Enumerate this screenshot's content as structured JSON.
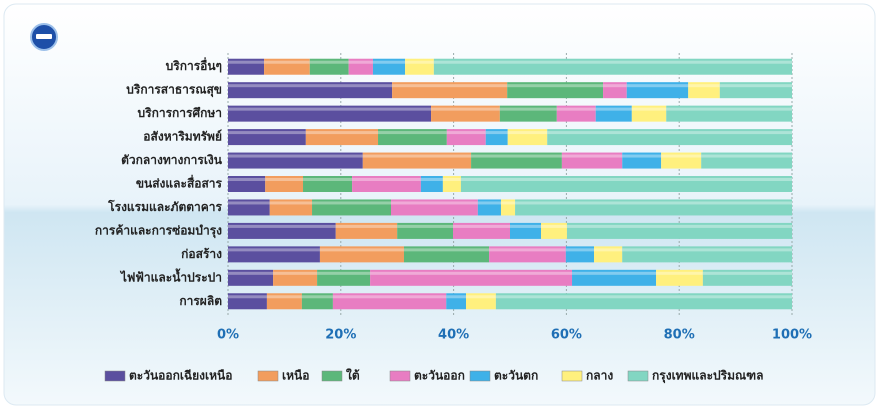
{
  "chart_data": {
    "type": "stacked-bar-horizontal-percent",
    "categories": [
      "บริการอื่นๆ",
      "บริการสาธารณสุข",
      "บริการการศึกษา",
      "อสังหาริมทรัพย์",
      "ตัวกลางทางการเงิน",
      "ขนส่งและสื่อสาร",
      "โรงแรมและภัตตาคาร",
      "การค้าและการซ่อมบำรุง",
      "ก่อสร้าง",
      "ไฟฟ้าและน้ำประปา",
      "การผลิต"
    ],
    "series": [
      {
        "name": "ตะวันออกเฉียงเหนือ",
        "color": "#5b4f9f",
        "values": [
          6.4,
          29.1,
          36.0,
          13.8,
          23.9,
          6.6,
          7.4,
          19.1,
          16.3,
          8.0,
          6.9
        ]
      },
      {
        "name": "เหนือ",
        "color": "#f29d5e",
        "values": [
          8.1,
          20.4,
          12.2,
          12.8,
          19.2,
          6.7,
          7.5,
          10.9,
          14.9,
          7.8,
          6.2
        ]
      },
      {
        "name": "ใต้",
        "color": "#5cb77a",
        "values": [
          6.9,
          17.0,
          10.1,
          12.2,
          16.1,
          8.7,
          14.0,
          9.9,
          15.1,
          9.4,
          5.5
        ]
      },
      {
        "name": "ตะวันออก",
        "color": "#e87dc2",
        "values": [
          4.3,
          4.2,
          6.9,
          6.9,
          10.7,
          12.2,
          15.4,
          10.1,
          13.6,
          35.8,
          20.1
        ]
      },
      {
        "name": "ตะวันตก",
        "color": "#3fb1e8",
        "values": [
          5.7,
          10.9,
          6.4,
          3.9,
          6.9,
          3.9,
          4.1,
          5.5,
          5.0,
          14.9,
          3.5
        ]
      },
      {
        "name": "กลาง",
        "color": "#fff07e",
        "values": [
          5.1,
          5.6,
          6.1,
          7.0,
          7.1,
          3.2,
          2.5,
          4.6,
          5.0,
          8.3,
          5.3
        ]
      },
      {
        "name": "กรุงเทพและปริมณฑล",
        "color": "#82d6c2",
        "values": [
          63.5,
          12.8,
          22.3,
          43.4,
          16.1,
          58.7,
          49.1,
          39.9,
          30.1,
          15.8,
          52.5
        ]
      }
    ],
    "xlim": [
      0,
      100
    ],
    "xticks": [
      {
        "value": 0,
        "label": "0%"
      },
      {
        "value": 20,
        "label": "20%"
      },
      {
        "value": 40,
        "label": "40%"
      },
      {
        "value": 60,
        "label": "60%"
      },
      {
        "value": 80,
        "label": "80%"
      },
      {
        "value": 100,
        "label": "100%"
      }
    ],
    "grid": true,
    "legend": "bottom"
  }
}
